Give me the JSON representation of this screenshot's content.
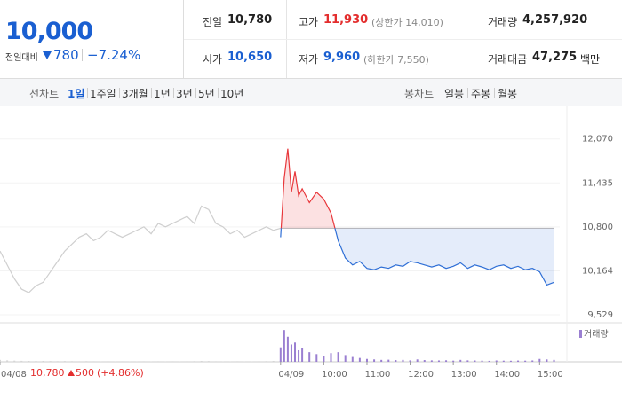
{
  "header": {
    "price": "10,000",
    "change_label": "전일대비",
    "change": "780",
    "change_pct": "−7.24%",
    "color": "#1a5fd1"
  },
  "stats": [
    {
      "label": "전일",
      "value": "10,780",
      "color": "#222"
    },
    {
      "label": "고가",
      "value": "11,930",
      "note": "(상한가 14,010)",
      "color": "#e32d2d"
    },
    {
      "label": "거래량",
      "value": "4,257,920",
      "color": "#222"
    },
    {
      "label": "시가",
      "value": "10,650",
      "color": "#1a5fd1"
    },
    {
      "label": "저가",
      "value": "9,960",
      "note": "(하한가 7,550)",
      "color": "#1a5fd1"
    },
    {
      "label": "거래대금",
      "value": "47,275",
      "unit": "백만",
      "color": "#222"
    }
  ],
  "tabs": {
    "line_label": "선차트",
    "line_items": [
      "1일",
      "1주일",
      "3개월",
      "1년",
      "3년",
      "5년",
      "10년"
    ],
    "selected": 0,
    "candle_label": "봉차트",
    "candle_items": [
      "일봉",
      "주봉",
      "월봉"
    ]
  },
  "prev_info": {
    "price": "10,780",
    "change": "500",
    "change_pct": "(+4.86%)"
  },
  "chart_data": {
    "type": "line",
    "xlim": [
      0,
      778
    ],
    "ylim": [
      9440,
      12220
    ],
    "yticks": [
      {
        "value": 9529,
        "label": "9,529"
      },
      {
        "value": 10164,
        "label": "10,164"
      },
      {
        "value": 10800,
        "label": "10,800"
      },
      {
        "value": 11435,
        "label": "11,435"
      },
      {
        "value": 12070,
        "label": "12,070"
      }
    ],
    "xticks": [
      {
        "value": 0,
        "label": "04/08"
      },
      {
        "value": 390,
        "label": "04/09"
      },
      {
        "value": 450,
        "label": "10:00"
      },
      {
        "value": 510,
        "label": "11:00"
      },
      {
        "value": 570,
        "label": "12:00"
      },
      {
        "value": 630,
        "label": "13:00"
      },
      {
        "value": 690,
        "label": "14:00"
      },
      {
        "value": 750,
        "label": "15:00"
      }
    ],
    "baseline": 10780,
    "series": [
      {
        "color": "#cfcfcf",
        "x": [
          0,
          10,
          20,
          30,
          40,
          50,
          60,
          70,
          80,
          90,
          100,
          110,
          120,
          130,
          140,
          150,
          160,
          170,
          180,
          190,
          200,
          210,
          220,
          230,
          240,
          250,
          260,
          270,
          280,
          290,
          300,
          310,
          320,
          330,
          340,
          350,
          360,
          370,
          380,
          390
        ],
        "values": [
          10450,
          10250,
          10050,
          9900,
          9850,
          9950,
          10000,
          10150,
          10300,
          10450,
          10550,
          10650,
          10700,
          10600,
          10650,
          10750,
          10700,
          10650,
          10700,
          10750,
          10800,
          10700,
          10850,
          10800,
          10850,
          10900,
          10950,
          10850,
          11100,
          11050,
          10850,
          10800,
          10700,
          10750,
          10650,
          10700,
          10750,
          10800,
          10750,
          10780
        ]
      },
      {
        "color": "#2f6fd6",
        "up_color": "#e8373b",
        "x": [
          390,
          395,
          400,
          405,
          410,
          415,
          420,
          430,
          440,
          450,
          460,
          470,
          480,
          490,
          500,
          510,
          520,
          530,
          540,
          550,
          560,
          570,
          580,
          590,
          600,
          610,
          620,
          630,
          640,
          650,
          660,
          670,
          680,
          690,
          700,
          710,
          720,
          730,
          740,
          750,
          760,
          770
        ],
        "values": [
          10650,
          11500,
          11930,
          11300,
          11600,
          11250,
          11350,
          11150,
          11300,
          11200,
          11000,
          10600,
          10350,
          10250,
          10300,
          10200,
          10180,
          10220,
          10200,
          10250,
          10230,
          10300,
          10280,
          10250,
          10220,
          10250,
          10200,
          10230,
          10280,
          10200,
          10250,
          10220,
          10180,
          10230,
          10250,
          10200,
          10230,
          10180,
          10200,
          10150,
          9960,
          10000
        ]
      }
    ],
    "volume": {
      "name": "거래량",
      "ylim": [
        0,
        350000
      ],
      "color": "#9a7fd1",
      "prev_color": "#d6d6d6",
      "prev_values": [
        20000,
        15000,
        12000,
        10000,
        9000,
        8000,
        9000,
        8000,
        7000,
        8000,
        7000,
        6000,
        7000,
        6000,
        5000,
        6000,
        5000,
        6000,
        5000,
        5000,
        6000,
        5000,
        6000,
        5000,
        6000,
        5000,
        6000,
        7000,
        9000,
        8000,
        6000,
        5000,
        5000,
        6000,
        5000,
        5000,
        6000,
        7000,
        9000,
        12000
      ],
      "values": [
        150000,
        330000,
        260000,
        180000,
        200000,
        120000,
        140000,
        100000,
        80000,
        60000,
        90000,
        100000,
        70000,
        50000,
        40000,
        30000,
        25000,
        20000,
        22000,
        18000,
        20000,
        15000,
        25000,
        18000,
        15000,
        14000,
        16000,
        12000,
        20000,
        15000,
        14000,
        12000,
        10000,
        14000,
        12000,
        11000,
        13000,
        12000,
        14000,
        30000,
        25000,
        20000
      ]
    }
  }
}
